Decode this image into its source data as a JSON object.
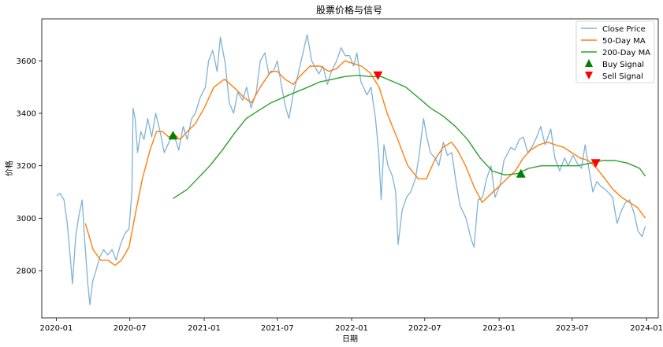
{
  "chart_data": {
    "type": "line",
    "title": "股票价格与信号",
    "xlabel": "日期",
    "ylabel": "价格",
    "xlim": [
      "2019-11-26",
      "2024-01-30"
    ],
    "ylim": [
      2620,
      3760
    ],
    "x_ticks": [
      "2020-01",
      "2020-07",
      "2021-01",
      "2021-07",
      "2022-01",
      "2022-07",
      "2023-01",
      "2023-07",
      "2024-01"
    ],
    "y_ticks": [
      2800,
      3000,
      3200,
      3400,
      3600
    ],
    "grid": false,
    "legend_position": "upper right",
    "colors": {
      "close": "#7fb2d5",
      "ma50": "#ff7f0e",
      "ma200": "#2ca02c",
      "buy": "#008000",
      "sell": "#ff0000"
    },
    "series": [
      {
        "name": "Close Price",
        "points": [
          [
            "2020-01-02",
            3085
          ],
          [
            "2020-01-10",
            3095
          ],
          [
            "2020-01-20",
            3070
          ],
          [
            "2020-01-28",
            2980
          ],
          [
            "2020-02-04",
            2860
          ],
          [
            "2020-02-10",
            2750
          ],
          [
            "2020-02-18",
            2930
          ],
          [
            "2020-02-26",
            3010
          ],
          [
            "2020-03-05",
            3070
          ],
          [
            "2020-03-12",
            2900
          ],
          [
            "2020-03-19",
            2750
          ],
          [
            "2020-03-24",
            2670
          ],
          [
            "2020-03-31",
            2760
          ],
          [
            "2020-04-08",
            2800
          ],
          [
            "2020-04-17",
            2850
          ],
          [
            "2020-04-27",
            2880
          ],
          [
            "2020-05-07",
            2860
          ],
          [
            "2020-05-18",
            2880
          ],
          [
            "2020-05-28",
            2840
          ],
          [
            "2020-06-08",
            2900
          ],
          [
            "2020-06-18",
            2940
          ],
          [
            "2020-06-29",
            2960
          ],
          [
            "2020-07-06",
            3100
          ],
          [
            "2020-07-09",
            3420
          ],
          [
            "2020-07-14",
            3380
          ],
          [
            "2020-07-20",
            3250
          ],
          [
            "2020-07-28",
            3330
          ],
          [
            "2020-08-05",
            3300
          ],
          [
            "2020-08-14",
            3380
          ],
          [
            "2020-08-24",
            3310
          ],
          [
            "2020-09-03",
            3400
          ],
          [
            "2020-09-14",
            3330
          ],
          [
            "2020-09-24",
            3250
          ],
          [
            "2020-10-09",
            3300
          ],
          [
            "2020-10-20",
            3310
          ],
          [
            "2020-10-30",
            3260
          ],
          [
            "2020-11-10",
            3350
          ],
          [
            "2020-11-20",
            3300
          ],
          [
            "2020-12-01",
            3380
          ],
          [
            "2020-12-10",
            3400
          ],
          [
            "2020-12-22",
            3460
          ],
          [
            "2021-01-04",
            3500
          ],
          [
            "2021-01-12",
            3600
          ],
          [
            "2021-01-22",
            3640
          ],
          [
            "2021-02-02",
            3560
          ],
          [
            "2021-02-10",
            3690
          ],
          [
            "2021-02-22",
            3590
          ],
          [
            "2021-03-04",
            3440
          ],
          [
            "2021-03-15",
            3400
          ],
          [
            "2021-03-25",
            3480
          ],
          [
            "2021-04-06",
            3450
          ],
          [
            "2021-04-16",
            3500
          ],
          [
            "2021-04-27",
            3420
          ],
          [
            "2021-05-10",
            3480
          ],
          [
            "2021-05-20",
            3600
          ],
          [
            "2021-05-31",
            3630
          ],
          [
            "2021-06-10",
            3550
          ],
          [
            "2021-06-21",
            3560
          ],
          [
            "2021-07-01",
            3600
          ],
          [
            "2021-07-12",
            3500
          ],
          [
            "2021-07-22",
            3420
          ],
          [
            "2021-07-30",
            3380
          ],
          [
            "2021-08-10",
            3480
          ],
          [
            "2021-08-20",
            3540
          ],
          [
            "2021-09-01",
            3620
          ],
          [
            "2021-09-13",
            3700
          ],
          [
            "2021-09-24",
            3600
          ],
          [
            "2021-10-12",
            3550
          ],
          [
            "2021-10-22",
            3580
          ],
          [
            "2021-11-02",
            3510
          ],
          [
            "2021-11-12",
            3560
          ],
          [
            "2021-11-25",
            3600
          ],
          [
            "2021-12-06",
            3650
          ],
          [
            "2021-12-16",
            3620
          ],
          [
            "2021-12-27",
            3620
          ],
          [
            "2022-01-06",
            3580
          ],
          [
            "2022-01-14",
            3630
          ],
          [
            "2022-01-24",
            3520
          ],
          [
            "2022-02-08",
            3470
          ],
          [
            "2022-02-18",
            3500
          ],
          [
            "2022-03-01",
            3380
          ],
          [
            "2022-03-09",
            3250
          ],
          [
            "2022-03-15",
            3070
          ],
          [
            "2022-03-22",
            3280
          ],
          [
            "2022-04-01",
            3200
          ],
          [
            "2022-04-12",
            3160
          ],
          [
            "2022-04-20",
            3100
          ],
          [
            "2022-04-26",
            2900
          ],
          [
            "2022-05-06",
            3030
          ],
          [
            "2022-05-17",
            3080
          ],
          [
            "2022-05-27",
            3100
          ],
          [
            "2022-06-08",
            3150
          ],
          [
            "2022-06-17",
            3240
          ],
          [
            "2022-06-28",
            3380
          ],
          [
            "2022-07-06",
            3310
          ],
          [
            "2022-07-15",
            3250
          ],
          [
            "2022-07-26",
            3230
          ],
          [
            "2022-08-05",
            3200
          ],
          [
            "2022-08-16",
            3290
          ],
          [
            "2022-08-26",
            3240
          ],
          [
            "2022-09-06",
            3250
          ],
          [
            "2022-09-16",
            3140
          ],
          [
            "2022-09-26",
            3050
          ],
          [
            "2022-10-11",
            3000
          ],
          [
            "2022-10-24",
            2920
          ],
          [
            "2022-10-31",
            2890
          ],
          [
            "2022-11-10",
            3070
          ],
          [
            "2022-11-21",
            3080
          ],
          [
            "2022-12-01",
            3150
          ],
          [
            "2022-12-12",
            3200
          ],
          [
            "2022-12-22",
            3080
          ],
          [
            "2023-01-04",
            3130
          ],
          [
            "2023-01-13",
            3220
          ],
          [
            "2023-01-30",
            3270
          ],
          [
            "2023-02-09",
            3260
          ],
          [
            "2023-02-20",
            3300
          ],
          [
            "2023-03-02",
            3310
          ],
          [
            "2023-03-13",
            3250
          ],
          [
            "2023-03-23",
            3270
          ],
          [
            "2023-04-04",
            3310
          ],
          [
            "2023-04-14",
            3350
          ],
          [
            "2023-04-25",
            3280
          ],
          [
            "2023-05-09",
            3340
          ],
          [
            "2023-05-19",
            3230
          ],
          [
            "2023-05-31",
            3180
          ],
          [
            "2023-06-12",
            3230
          ],
          [
            "2023-06-21",
            3200
          ],
          [
            "2023-07-03",
            3240
          ],
          [
            "2023-07-13",
            3210
          ],
          [
            "2023-07-24",
            3190
          ],
          [
            "2023-08-02",
            3280
          ],
          [
            "2023-08-11",
            3190
          ],
          [
            "2023-08-21",
            3100
          ],
          [
            "2023-08-31",
            3140
          ],
          [
            "2023-09-11",
            3120
          ],
          [
            "2023-09-21",
            3110
          ],
          [
            "2023-10-09",
            3080
          ],
          [
            "2023-10-20",
            2980
          ],
          [
            "2023-10-31",
            3030
          ],
          [
            "2023-11-10",
            3060
          ],
          [
            "2023-11-20",
            3070
          ],
          [
            "2023-12-01",
            3020
          ],
          [
            "2023-12-11",
            2950
          ],
          [
            "2023-12-21",
            2930
          ],
          [
            "2023-12-29",
            2970
          ]
        ]
      },
      {
        "name": "50-Day MA",
        "points": [
          [
            "2020-03-13",
            2980
          ],
          [
            "2020-04-01",
            2880
          ],
          [
            "2020-04-20",
            2840
          ],
          [
            "2020-05-08",
            2840
          ],
          [
            "2020-05-25",
            2820
          ],
          [
            "2020-06-10",
            2840
          ],
          [
            "2020-06-29",
            2890
          ],
          [
            "2020-07-15",
            3020
          ],
          [
            "2020-08-01",
            3150
          ],
          [
            "2020-08-20",
            3260
          ],
          [
            "2020-09-05",
            3330
          ],
          [
            "2020-09-20",
            3330
          ],
          [
            "2020-10-05",
            3310
          ],
          [
            "2020-10-19",
            3320
          ],
          [
            "2020-11-02",
            3300
          ],
          [
            "2020-11-20",
            3330
          ],
          [
            "2020-12-10",
            3360
          ],
          [
            "2021-01-01",
            3420
          ],
          [
            "2021-01-25",
            3500
          ],
          [
            "2021-02-20",
            3530
          ],
          [
            "2021-03-15",
            3500
          ],
          [
            "2021-04-10",
            3460
          ],
          [
            "2021-04-28",
            3440
          ],
          [
            "2021-05-20",
            3500
          ],
          [
            "2021-06-15",
            3560
          ],
          [
            "2021-07-01",
            3560
          ],
          [
            "2021-07-20",
            3530
          ],
          [
            "2021-08-10",
            3510
          ],
          [
            "2021-08-25",
            3540
          ],
          [
            "2021-09-20",
            3580
          ],
          [
            "2021-10-15",
            3580
          ],
          [
            "2021-11-05",
            3560
          ],
          [
            "2021-11-25",
            3570
          ],
          [
            "2021-12-15",
            3600
          ],
          [
            "2022-01-05",
            3590
          ],
          [
            "2022-01-25",
            3580
          ],
          [
            "2022-02-15",
            3555
          ],
          [
            "2022-03-10",
            3500
          ],
          [
            "2022-03-30",
            3400
          ],
          [
            "2022-04-25",
            3300
          ],
          [
            "2022-05-20",
            3200
          ],
          [
            "2022-06-15",
            3150
          ],
          [
            "2022-07-05",
            3150
          ],
          [
            "2022-07-25",
            3220
          ],
          [
            "2022-08-15",
            3270
          ],
          [
            "2022-09-05",
            3290
          ],
          [
            "2022-09-20",
            3260
          ],
          [
            "2022-10-10",
            3200
          ],
          [
            "2022-10-31",
            3120
          ],
          [
            "2022-11-20",
            3060
          ],
          [
            "2022-12-10",
            3090
          ],
          [
            "2022-12-31",
            3120
          ],
          [
            "2023-01-20",
            3150
          ],
          [
            "2023-02-10",
            3180
          ],
          [
            "2023-03-02",
            3230
          ],
          [
            "2023-03-20",
            3260
          ],
          [
            "2023-04-10",
            3280
          ],
          [
            "2023-05-01",
            3290
          ],
          [
            "2023-05-20",
            3280
          ],
          [
            "2023-06-10",
            3270
          ],
          [
            "2023-06-30",
            3250
          ],
          [
            "2023-07-20",
            3230
          ],
          [
            "2023-08-10",
            3220
          ],
          [
            "2023-08-31",
            3190
          ],
          [
            "2023-09-20",
            3150
          ],
          [
            "2023-10-10",
            3110
          ],
          [
            "2023-10-31",
            3080
          ],
          [
            "2023-11-20",
            3060
          ],
          [
            "2023-12-10",
            3040
          ],
          [
            "2023-12-29",
            3000
          ]
        ]
      },
      {
        "name": "200-Day MA",
        "points": [
          [
            "2020-10-16",
            3075
          ],
          [
            "2020-11-20",
            3110
          ],
          [
            "2020-12-15",
            3150
          ],
          [
            "2021-01-15",
            3200
          ],
          [
            "2021-02-15",
            3260
          ],
          [
            "2021-03-15",
            3320
          ],
          [
            "2021-04-15",
            3380
          ],
          [
            "2021-05-15",
            3410
          ],
          [
            "2021-06-15",
            3440
          ],
          [
            "2021-07-15",
            3460
          ],
          [
            "2021-08-15",
            3480
          ],
          [
            "2021-09-15",
            3500
          ],
          [
            "2021-10-15",
            3520
          ],
          [
            "2021-11-15",
            3530
          ],
          [
            "2021-12-15",
            3540
          ],
          [
            "2022-01-15",
            3545
          ],
          [
            "2022-02-15",
            3540
          ],
          [
            "2022-03-15",
            3540
          ],
          [
            "2022-04-15",
            3520
          ],
          [
            "2022-05-15",
            3500
          ],
          [
            "2022-06-15",
            3460
          ],
          [
            "2022-07-15",
            3420
          ],
          [
            "2022-08-15",
            3390
          ],
          [
            "2022-09-15",
            3350
          ],
          [
            "2022-10-15",
            3300
          ],
          [
            "2022-11-15",
            3230
          ],
          [
            "2022-12-15",
            3180
          ],
          [
            "2023-01-15",
            3165
          ],
          [
            "2023-02-15",
            3170
          ],
          [
            "2023-03-15",
            3190
          ],
          [
            "2023-04-15",
            3200
          ],
          [
            "2023-05-15",
            3200
          ],
          [
            "2023-06-15",
            3200
          ],
          [
            "2023-07-15",
            3200
          ],
          [
            "2023-08-15",
            3210
          ],
          [
            "2023-09-15",
            3220
          ],
          [
            "2023-10-15",
            3220
          ],
          [
            "2023-11-15",
            3210
          ],
          [
            "2023-12-15",
            3190
          ],
          [
            "2023-12-29",
            3160
          ]
        ]
      }
    ],
    "signals": [
      {
        "name": "Buy Signal",
        "kind": "buy",
        "points": [
          [
            "2020-10-16",
            3315
          ],
          [
            "2023-02-24",
            3170
          ]
        ]
      },
      {
        "name": "Sell Signal",
        "kind": "sell",
        "points": [
          [
            "2022-03-07",
            3545
          ],
          [
            "2023-08-28",
            3210
          ]
        ]
      }
    ]
  }
}
